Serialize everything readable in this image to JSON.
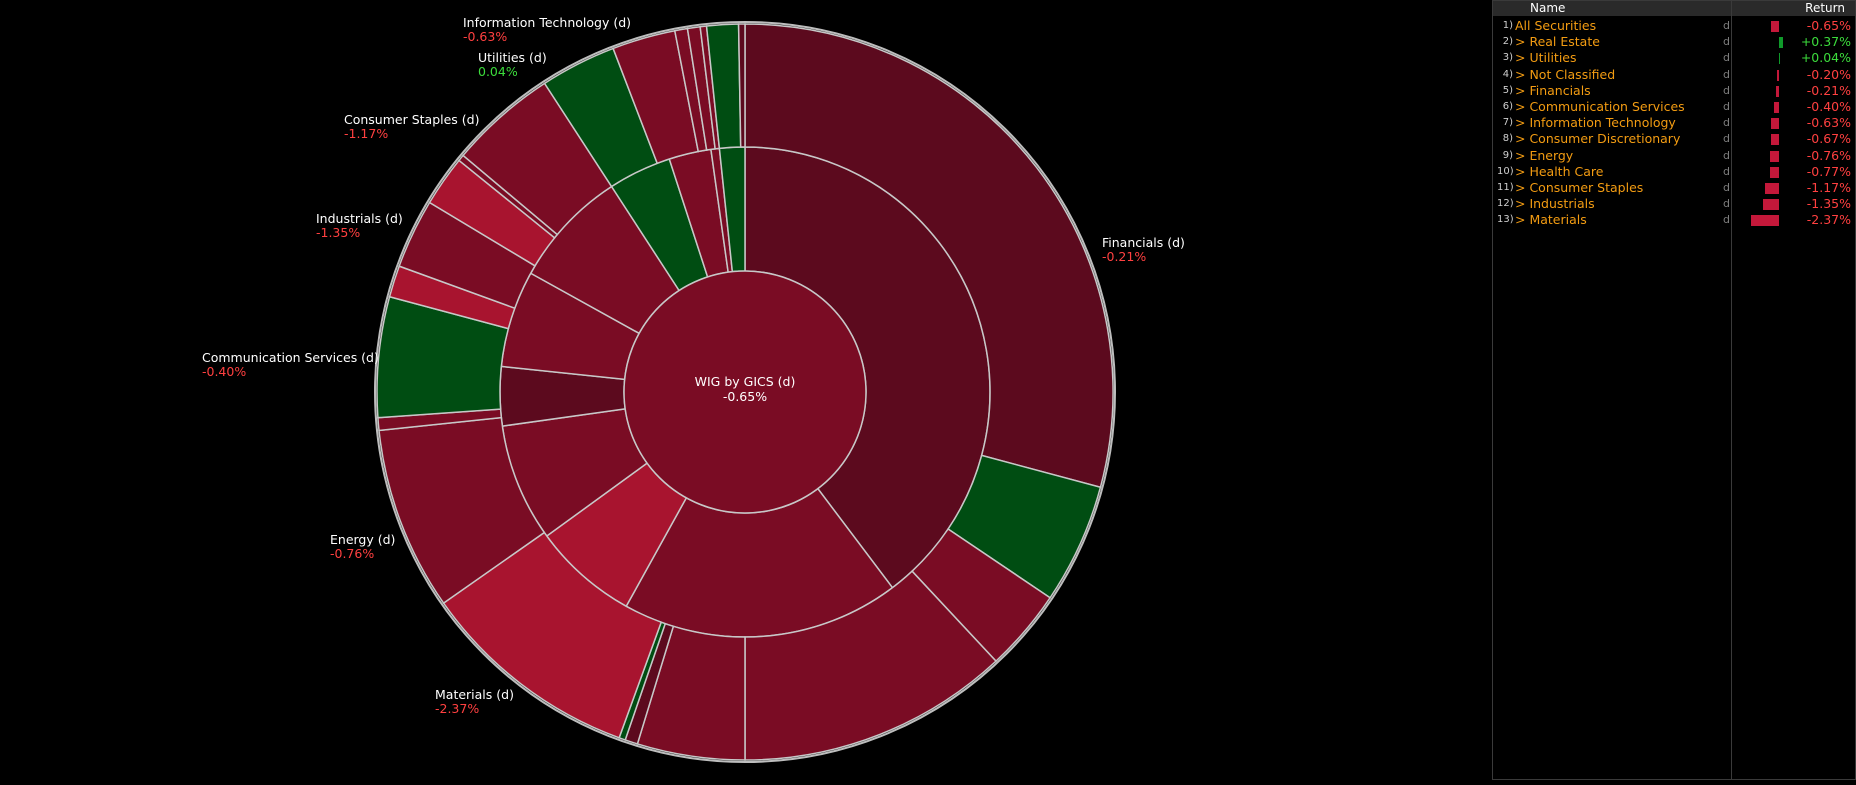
{
  "center": {
    "title": "WIG by GICS (d)",
    "value": "-0.65%"
  },
  "colors": {
    "neg_dark": "#5c0a1e",
    "neg_mid": "#7a0c24",
    "neg_bright": "#a8142f",
    "pos": "#004d12",
    "neg_text": "#ff4040",
    "pos_text": "#3cdc3c",
    "label_orange": "#f39c12"
  },
  "callouts": {
    "information_technology": {
      "name": "Information Technology (d)",
      "value": "-0.63%"
    },
    "utilities": {
      "name": "Utilities (d)",
      "value": "0.04%"
    },
    "consumer_staples": {
      "name": "Consumer Staples (d)",
      "value": "-1.17%"
    },
    "industrials": {
      "name": "Industrials (d)",
      "value": "-1.35%"
    },
    "communication_services": {
      "name": "Communication Services (d)",
      "value": "-0.40%"
    },
    "energy": {
      "name": "Energy (d)",
      "value": "-0.76%"
    },
    "materials": {
      "name": "Materials (d)",
      "value": "-2.37%"
    },
    "financials": {
      "name": "Financials (d)",
      "value": "-0.21%"
    }
  },
  "panel": {
    "header_name": "Name",
    "header_return": "Return",
    "rows": [
      {
        "idx": "1)",
        "label": "All Securities",
        "d": "d",
        "ret": "-0.65%",
        "value": -0.65
      },
      {
        "idx": "2)",
        "label": "> Real Estate",
        "d": "d",
        "ret": "+0.37%",
        "value": 0.37
      },
      {
        "idx": "3)",
        "label": "> Utilities",
        "d": "d",
        "ret": "+0.04%",
        "value": 0.04
      },
      {
        "idx": "4)",
        "label": "> Not Classified",
        "d": "d",
        "ret": "-0.20%",
        "value": -0.2
      },
      {
        "idx": "5)",
        "label": "> Financials",
        "d": "d",
        "ret": "-0.21%",
        "value": -0.21
      },
      {
        "idx": "6)",
        "label": "> Communication Services",
        "d": "d",
        "ret": "-0.40%",
        "value": -0.4
      },
      {
        "idx": "7)",
        "label": "> Information Technology",
        "d": "d",
        "ret": "-0.63%",
        "value": -0.63
      },
      {
        "idx": "8)",
        "label": "> Consumer Discretionary",
        "d": "d",
        "ret": "-0.67%",
        "value": -0.67
      },
      {
        "idx": "9)",
        "label": "> Energy",
        "d": "d",
        "ret": "-0.76%",
        "value": -0.76
      },
      {
        "idx": "10)",
        "label": "> Health Care",
        "d": "d",
        "ret": "-0.77%",
        "value": -0.77
      },
      {
        "idx": "11)",
        "label": "> Consumer Staples",
        "d": "d",
        "ret": "-1.17%",
        "value": -1.17
      },
      {
        "idx": "12)",
        "label": "> Industrials",
        "d": "d",
        "ret": "-1.35%",
        "value": -1.35
      },
      {
        "idx": "13)",
        "label": "> Materials",
        "d": "d",
        "ret": "-2.37%",
        "value": -2.37
      }
    ]
  }
}
